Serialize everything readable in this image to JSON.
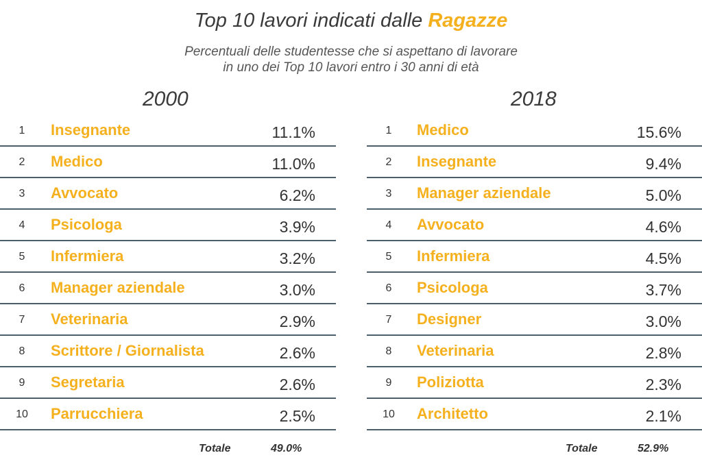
{
  "title": {
    "prefix": "Top 10 lavori indicati dalle",
    "accent": "Ragazze"
  },
  "subtitle": {
    "line1": "Percentuali delle studentesse che si aspettano di lavorare",
    "line2": "in uno dei Top 10 lavori entro i 30 anni di età"
  },
  "colors": {
    "accent": "#f5b01e",
    "divider": "#4a5e6b",
    "text": "#333333"
  },
  "left": {
    "year": "2000",
    "rows": [
      {
        "rank": "1",
        "job": "Insegnante",
        "pct": "11.1%"
      },
      {
        "rank": "2",
        "job": "Medico",
        "pct": "11.0%"
      },
      {
        "rank": "3",
        "job": "Avvocato",
        "pct": "6.2%"
      },
      {
        "rank": "4",
        "job": "Psicologa",
        "pct": "3.9%"
      },
      {
        "rank": "5",
        "job": "Infermiera",
        "pct": "3.2%"
      },
      {
        "rank": "6",
        "job": "Manager aziendale",
        "pct": "3.0%"
      },
      {
        "rank": "7",
        "job": "Veterinaria",
        "pct": "2.9%"
      },
      {
        "rank": "8",
        "job": "Scrittore / Giornalista",
        "pct": "2.6%"
      },
      {
        "rank": "9",
        "job": "Segretaria",
        "pct": "2.6%"
      },
      {
        "rank": "10",
        "job": "Parrucchiera",
        "pct": "2.5%"
      }
    ],
    "total_label": "Totale",
    "total_value": "49.0%"
  },
  "right": {
    "year": "2018",
    "rows": [
      {
        "rank": "1",
        "job": "Medico",
        "pct": "15.6%"
      },
      {
        "rank": "2",
        "job": "Insegnante",
        "pct": "9.4%"
      },
      {
        "rank": "3",
        "job": "Manager aziendale",
        "pct": "5.0%"
      },
      {
        "rank": "4",
        "job": "Avvocato",
        "pct": "4.6%"
      },
      {
        "rank": "5",
        "job": "Infermiera",
        "pct": "4.5%"
      },
      {
        "rank": "6",
        "job": "Psicologa",
        "pct": "3.7%"
      },
      {
        "rank": "7",
        "job": "Designer",
        "pct": "3.0%"
      },
      {
        "rank": "8",
        "job": "Veterinaria",
        "pct": "2.8%"
      },
      {
        "rank": "9",
        "job": "Poliziotta",
        "pct": "2.3%"
      },
      {
        "rank": "10",
        "job": "Architetto",
        "pct": "2.1%"
      }
    ],
    "total_label": "Totale",
    "total_value": "52.9%"
  }
}
